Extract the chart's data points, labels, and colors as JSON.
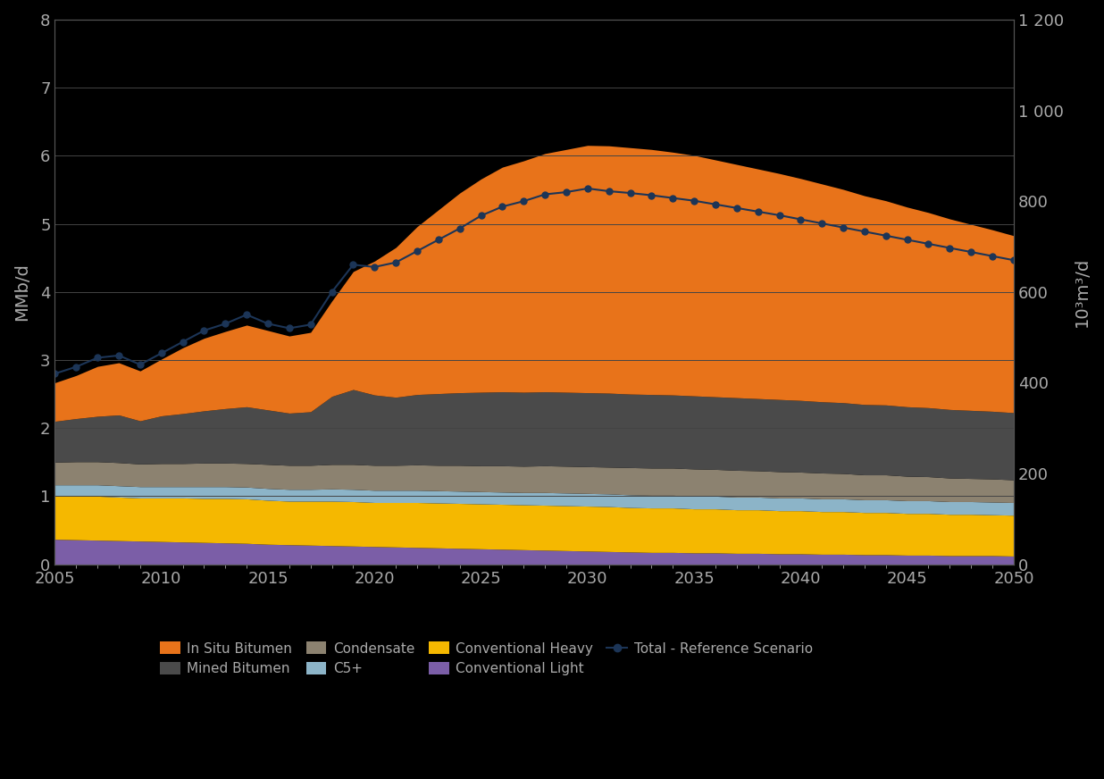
{
  "years": [
    2005,
    2006,
    2007,
    2008,
    2009,
    2010,
    2011,
    2012,
    2013,
    2014,
    2015,
    2016,
    2017,
    2018,
    2019,
    2020,
    2021,
    2022,
    2023,
    2024,
    2025,
    2026,
    2027,
    2028,
    2029,
    2030,
    2031,
    2032,
    2033,
    2034,
    2035,
    2036,
    2037,
    2038,
    2039,
    2040,
    2041,
    2042,
    2043,
    2044,
    2045,
    2046,
    2047,
    2048,
    2049,
    2050
  ],
  "conv_light": [
    55,
    54,
    53,
    52,
    51,
    50,
    49,
    48,
    47,
    46,
    44,
    43,
    42,
    41,
    40,
    39,
    38,
    37,
    36,
    35,
    34,
    33,
    32,
    31,
    30,
    29,
    28,
    27,
    26,
    26,
    25,
    25,
    24,
    24,
    23,
    23,
    22,
    22,
    21,
    21,
    20,
    20,
    19,
    19,
    19,
    18
  ],
  "conv_heavy": [
    95,
    96,
    97,
    96,
    95,
    96,
    97,
    97,
    98,
    98,
    97,
    96,
    97,
    98,
    98,
    97,
    98,
    99,
    99,
    99,
    99,
    99,
    99,
    99,
    99,
    99,
    99,
    98,
    98,
    98,
    97,
    97,
    96,
    96,
    95,
    95,
    94,
    94,
    93,
    93,
    92,
    92,
    91,
    91,
    90,
    90
  ],
  "c5plus": [
    25,
    25,
    25,
    25,
    25,
    25,
    25,
    26,
    26,
    26,
    26,
    26,
    26,
    27,
    27,
    27,
    27,
    27,
    27,
    27,
    27,
    27,
    27,
    28,
    28,
    28,
    28,
    28,
    28,
    28,
    28,
    28,
    28,
    28,
    28,
    28,
    28,
    28,
    28,
    28,
    28,
    28,
    28,
    28,
    28,
    28
  ],
  "condensate": [
    50,
    51,
    51,
    51,
    50,
    51,
    51,
    52,
    52,
    52,
    53,
    53,
    53,
    54,
    55,
    55,
    55,
    56,
    56,
    57,
    57,
    58,
    58,
    59,
    59,
    59,
    59,
    60,
    60,
    60,
    60,
    59,
    59,
    58,
    58,
    57,
    57,
    56,
    55,
    55,
    54,
    53,
    52,
    51,
    51,
    50
  ],
  "mined_bitumen": [
    90,
    95,
    100,
    105,
    95,
    105,
    110,
    115,
    120,
    125,
    120,
    115,
    118,
    150,
    165,
    155,
    150,
    155,
    158,
    160,
    162,
    163,
    163,
    163,
    163,
    163,
    163,
    162,
    162,
    161,
    161,
    160,
    160,
    159,
    159,
    158,
    157,
    156,
    155,
    154,
    153,
    152,
    151,
    150,
    149,
    148
  ],
  "in_situ_bitumen": [
    85,
    95,
    110,
    115,
    110,
    125,
    145,
    160,
    170,
    180,
    175,
    170,
    175,
    210,
    260,
    295,
    330,
    370,
    405,
    440,
    470,
    495,
    510,
    525,
    535,
    545,
    545,
    543,
    540,
    535,
    530,
    522,
    514,
    506,
    498,
    489,
    480,
    470,
    460,
    450,
    440,
    430,
    420,
    410,
    400,
    390
  ],
  "total_reference": [
    420,
    435,
    455,
    460,
    440,
    465,
    490,
    515,
    530,
    550,
    530,
    520,
    528,
    600,
    660,
    655,
    665,
    690,
    715,
    740,
    768,
    788,
    800,
    815,
    820,
    828,
    822,
    818,
    813,
    807,
    801,
    793,
    785,
    777,
    769,
    760,
    751,
    742,
    733,
    724,
    715,
    706,
    697,
    688,
    679,
    670
  ],
  "ylim_left": [
    0,
    8
  ],
  "ylim_right": [
    0,
    1200
  ],
  "yticks_left": [
    0,
    1,
    2,
    3,
    4,
    5,
    6,
    7,
    8
  ],
  "yticks_right": [
    0,
    200,
    400,
    600,
    800,
    1000,
    1200
  ],
  "xlim": [
    2005,
    2050
  ],
  "xticks": [
    2005,
    2010,
    2015,
    2020,
    2025,
    2030,
    2035,
    2040,
    2045,
    2050
  ],
  "colors": {
    "in_situ_bitumen": "#E8731A",
    "mined_bitumen": "#4A4A4A",
    "condensate": "#8C8270",
    "c5plus": "#8CB4C8",
    "conv_heavy": "#F5B800",
    "conv_light": "#7B5EA7",
    "total_reference": "#1C3557"
  },
  "legend_labels": {
    "in_situ_bitumen": "In Situ Bitumen",
    "mined_bitumen": "Mined Bitumen",
    "condensate": "Condensate",
    "c5plus": "C5+",
    "conv_heavy": "Conventional Heavy",
    "conv_light": "Conventional Light",
    "total_reference": "Total - Reference Scenario"
  },
  "ylabel_left": "MMb/d",
  "ylabel_right": "10³m³/d",
  "background_color": "#000000",
  "plot_bg_color": "#000000",
  "grid_color": "#444444",
  "text_color": "#aaaaaa",
  "axis_color": "#555555",
  "scale": 150.0
}
